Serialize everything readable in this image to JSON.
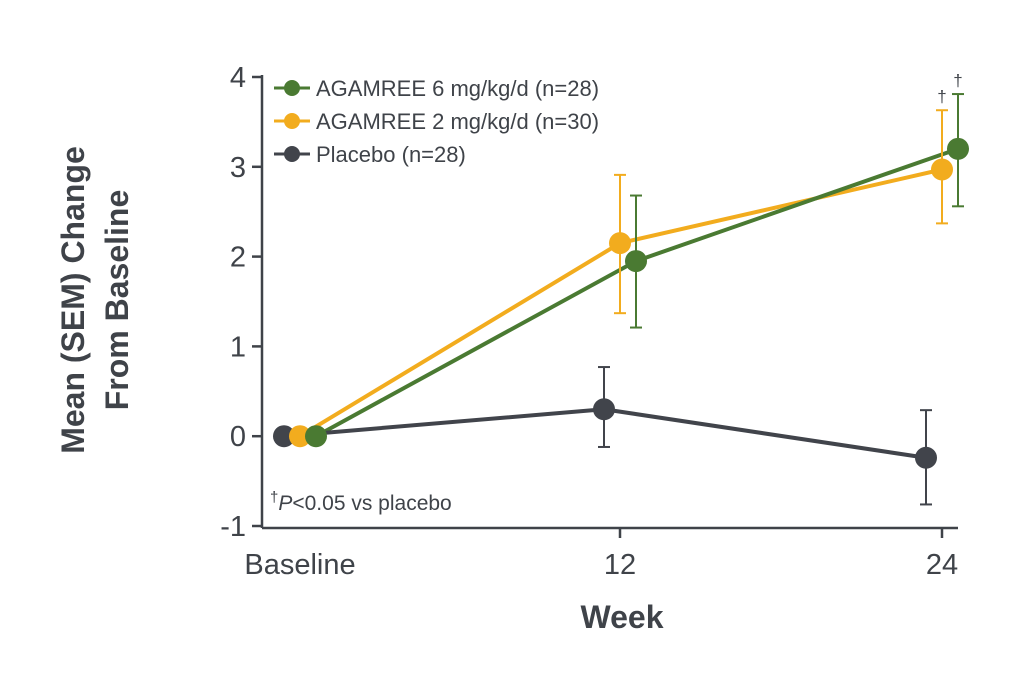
{
  "chart_data": {
    "type": "line",
    "xlabel": "Week",
    "ylabel_lines": [
      "Mean (SEM) Change",
      "From Baseline"
    ],
    "categories": [
      "Baseline",
      "12",
      "24"
    ],
    "ylim": [
      -1,
      4
    ],
    "yticks": [
      "-1",
      "0",
      "1",
      "2",
      "3",
      "4"
    ],
    "grid": false,
    "legend_position": "top-left",
    "series": [
      {
        "name": "AGAMREE 6 mg/kg/d (n=28)",
        "color": "#4a7a32",
        "values": [
          0,
          1.95,
          3.2
        ],
        "err_low": [
          null,
          1.21,
          2.56
        ],
        "err_high": [
          null,
          2.68,
          3.81
        ],
        "significance": [
          null,
          null,
          "†"
        ]
      },
      {
        "name": "AGAMREE 2 mg/kg/d (n=30)",
        "color": "#f2ac1e",
        "values": [
          0,
          2.15,
          2.97
        ],
        "err_low": [
          null,
          1.37,
          2.37
        ],
        "err_high": [
          null,
          2.91,
          3.63
        ],
        "significance": [
          null,
          null,
          "†"
        ]
      },
      {
        "name": "Placebo (n=28)",
        "color": "#41444b",
        "values": [
          0,
          0.3,
          -0.24
        ],
        "err_low": [
          null,
          -0.12,
          -0.76
        ],
        "err_high": [
          null,
          0.77,
          0.29
        ],
        "significance": [
          null,
          null,
          null
        ]
      }
    ],
    "footnote": {
      "dagger": "†",
      "p": "P",
      "rest": "<0.05 vs placebo"
    }
  }
}
